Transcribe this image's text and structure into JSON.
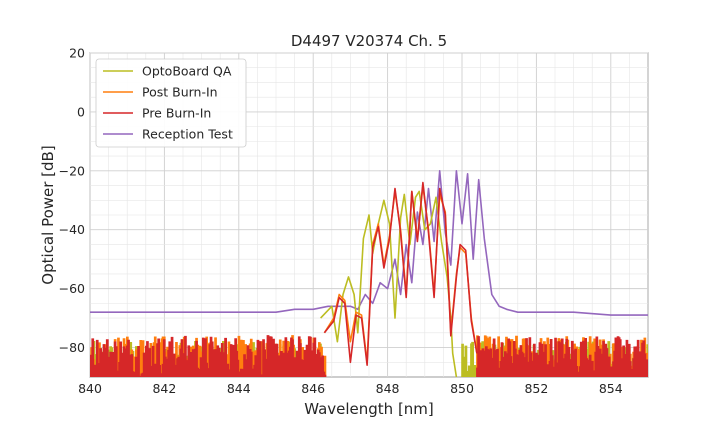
{
  "chart_data": {
    "type": "line",
    "title": "D4497 V20374 Ch. 5",
    "xlabel": "Wavelength [nm]",
    "ylabel": "Optical Power [dB]",
    "xlim": [
      840,
      855
    ],
    "ylim": [
      -90,
      20
    ],
    "xticks": [
      840,
      842,
      844,
      846,
      848,
      850,
      852,
      854
    ],
    "yticks": [
      20,
      0,
      -20,
      -40,
      -60,
      -80
    ],
    "xtick_labels": [
      "840",
      "842",
      "844",
      "846",
      "848",
      "850",
      "852",
      "854"
    ],
    "ytick_labels": [
      "20",
      "0",
      "−20",
      "−40",
      "−60",
      "−80"
    ],
    "grid": true,
    "legend_position": "top-left",
    "series": [
      {
        "name": "OptoBoard QA",
        "color": "#bcbd22",
        "noise_floor": -84,
        "noise_x_ranges": [
          [
            840,
            846.2
          ],
          [
            850,
            855
          ]
        ],
        "x": [
          846.2,
          846.5,
          846.65,
          846.8,
          846.95,
          847.1,
          847.2,
          847.35,
          847.5,
          847.6,
          847.75,
          847.9,
          848.05,
          848.2,
          848.35,
          848.45,
          848.6,
          848.75,
          848.85,
          849.0,
          849.15,
          849.3,
          849.45,
          849.6,
          849.7,
          849.75,
          849.85
        ],
        "y": [
          -70,
          -66,
          -78,
          -62,
          -56,
          -62,
          -75,
          -43,
          -35,
          -48,
          -38,
          -30,
          -38,
          -70,
          -36,
          -28,
          -45,
          -29,
          -27,
          -40,
          -38,
          -29,
          -44,
          -56,
          -70,
          -82,
          -90
        ]
      },
      {
        "name": "Post Burn-In",
        "color": "#ff7f0e",
        "noise_floor": -82,
        "noise_x_ranges": [
          [
            840,
            846.3
          ],
          [
            850.4,
            855
          ]
        ],
        "x": [
          846.3,
          846.55,
          846.7,
          846.85,
          847.0,
          847.15,
          847.3,
          847.45,
          847.6,
          847.75,
          847.9,
          848.05,
          848.2,
          848.35,
          848.5,
          848.65,
          848.8,
          848.95,
          849.1,
          849.25,
          849.4,
          849.55,
          849.7,
          849.85,
          849.95,
          850.1,
          850.25,
          850.4
        ],
        "y": [
          -75,
          -70,
          -62,
          -64,
          -78,
          -68,
          -69,
          -85,
          -45,
          -38,
          -52,
          -42,
          -27,
          -40,
          -62,
          -27,
          -43,
          -25,
          -40,
          -62,
          -28,
          -34,
          -75,
          -55,
          -46,
          -48,
          -70,
          -82
        ]
      },
      {
        "name": "Pre Burn-In",
        "color": "#d62728",
        "noise_floor": -82,
        "noise_x_ranges": [
          [
            840,
            846.3
          ],
          [
            850.4,
            855
          ]
        ],
        "x": [
          846.3,
          846.55,
          846.7,
          846.85,
          847.0,
          847.15,
          847.3,
          847.45,
          847.6,
          847.75,
          847.9,
          848.05,
          848.2,
          848.35,
          848.5,
          848.65,
          848.8,
          848.95,
          849.1,
          849.25,
          849.4,
          849.55,
          849.7,
          849.85,
          849.95,
          850.1,
          850.25,
          850.4
        ],
        "y": [
          -75,
          -71,
          -63,
          -65,
          -85,
          -69,
          -70,
          -86,
          -46,
          -39,
          -53,
          -43,
          -26,
          -41,
          -63,
          -27,
          -44,
          -24,
          -41,
          -63,
          -26,
          -35,
          -76,
          -56,
          -45,
          -47,
          -71,
          -82
        ]
      },
      {
        "name": "Reception Test",
        "color": "#9467bd",
        "x": [
          840.0,
          841.0,
          842.0,
          843.0,
          844.0,
          845.0,
          845.5,
          846.0,
          846.4,
          846.8,
          847.0,
          847.2,
          847.4,
          847.6,
          847.8,
          848.0,
          848.2,
          848.35,
          848.5,
          848.65,
          848.8,
          848.95,
          849.1,
          849.25,
          849.4,
          849.55,
          849.7,
          849.85,
          850.0,
          850.15,
          850.3,
          850.45,
          850.6,
          850.8,
          851.0,
          851.2,
          851.5,
          852.0,
          853.0,
          854.0,
          855.0
        ],
        "y": [
          -68,
          -68,
          -68,
          -68,
          -68,
          -68,
          -67,
          -67,
          -66,
          -66,
          -66,
          -67,
          -62,
          -65,
          -58,
          -60,
          -50,
          -62,
          -45,
          -58,
          -34,
          -45,
          -26,
          -44,
          -20,
          -41,
          -52,
          -20,
          -38,
          -21,
          -50,
          -23,
          -43,
          -62,
          -66,
          -67,
          -68,
          -68,
          -68,
          -69,
          -69
        ]
      }
    ]
  }
}
